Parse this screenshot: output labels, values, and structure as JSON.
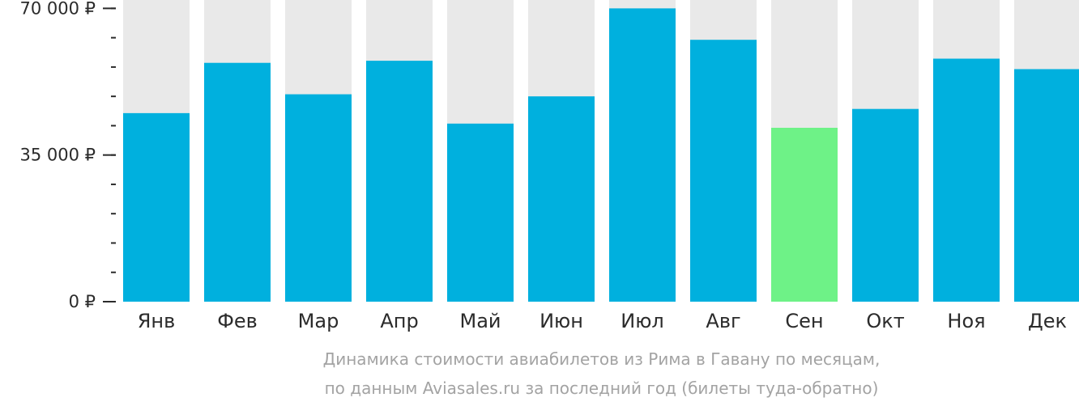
{
  "chart_data": {
    "type": "bar",
    "categories": [
      "Янв",
      "Фев",
      "Мар",
      "Апр",
      "Май",
      "Июн",
      "Июл",
      "Авг",
      "Сен",
      "Окт",
      "Ноя",
      "Дек"
    ],
    "values": [
      45000,
      57000,
      49500,
      57500,
      42500,
      49000,
      70000,
      62500,
      41500,
      46000,
      58000,
      55500
    ],
    "ylim": [
      0,
      72000
    ],
    "yticks": [
      {
        "value": 0,
        "label": "0 ₽"
      },
      {
        "value": 35000,
        "label": "35 000 ₽"
      },
      {
        "value": 70000,
        "label": "70 000 ₽"
      }
    ],
    "minor_tick_step": 7000,
    "highlight_index": 8,
    "colors": {
      "bar": "#00b0de",
      "highlight": "#6ef287",
      "background_column": "#e9e9e9",
      "axis": "#2b2b2b"
    },
    "grid": false,
    "legend": "none",
    "caption_line1": "Динамика стоимости авиабилетов из Рима в Гавану по месяцам,",
    "caption_line2": "по данным Aviasales.ru за последний год (билеты туда-обратно)"
  }
}
